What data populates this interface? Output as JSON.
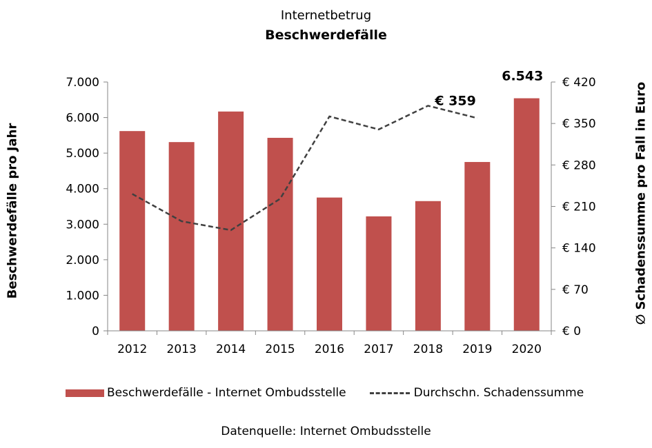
{
  "chart_data": {
    "type": "bar",
    "title": "Internetbetrug",
    "subtitle": "Beschwerdefälle",
    "categories": [
      "2012",
      "2013",
      "2014",
      "2015",
      "2016",
      "2017",
      "2018",
      "2019",
      "2020"
    ],
    "series": [
      {
        "name": "Beschwerdefälle - Internet Ombudsstelle",
        "type": "bar",
        "axis": "left",
        "color": "#c0504d",
        "values": [
          5620,
          5310,
          6170,
          5430,
          3750,
          3220,
          3650,
          4750,
          6543
        ]
      },
      {
        "name": "Durchschn. Schadenssumme",
        "type": "line",
        "style": "dashed",
        "axis": "right",
        "color": "#404040",
        "values": [
          231,
          185,
          170,
          223,
          362,
          340,
          380,
          359,
          null
        ]
      }
    ],
    "ylabel_left": "Beschwerdefälle pro Jahr",
    "ylabel_right": "∅ Schadenssumme pro Fall in Euro",
    "ylim_left": [
      0,
      7000
    ],
    "ylim_right": [
      0,
      420
    ],
    "yticks_left": [
      "0",
      "1.000",
      "2.000",
      "3.000",
      "4.000",
      "5.000",
      "6.000",
      "7.000"
    ],
    "yticks_right": [
      "€ 0",
      "€ 70",
      "€ 140",
      "€ 210",
      "€ 280",
      "€ 350",
      "€ 420"
    ],
    "annotations": [
      {
        "text": "6.543",
        "category": "2020",
        "series": 0
      },
      {
        "text": "€ 359",
        "category": "2019",
        "series": 1
      }
    ],
    "grid": false,
    "legend_position": "bottom"
  },
  "source": "Datenquelle: Internet Ombudsstelle"
}
